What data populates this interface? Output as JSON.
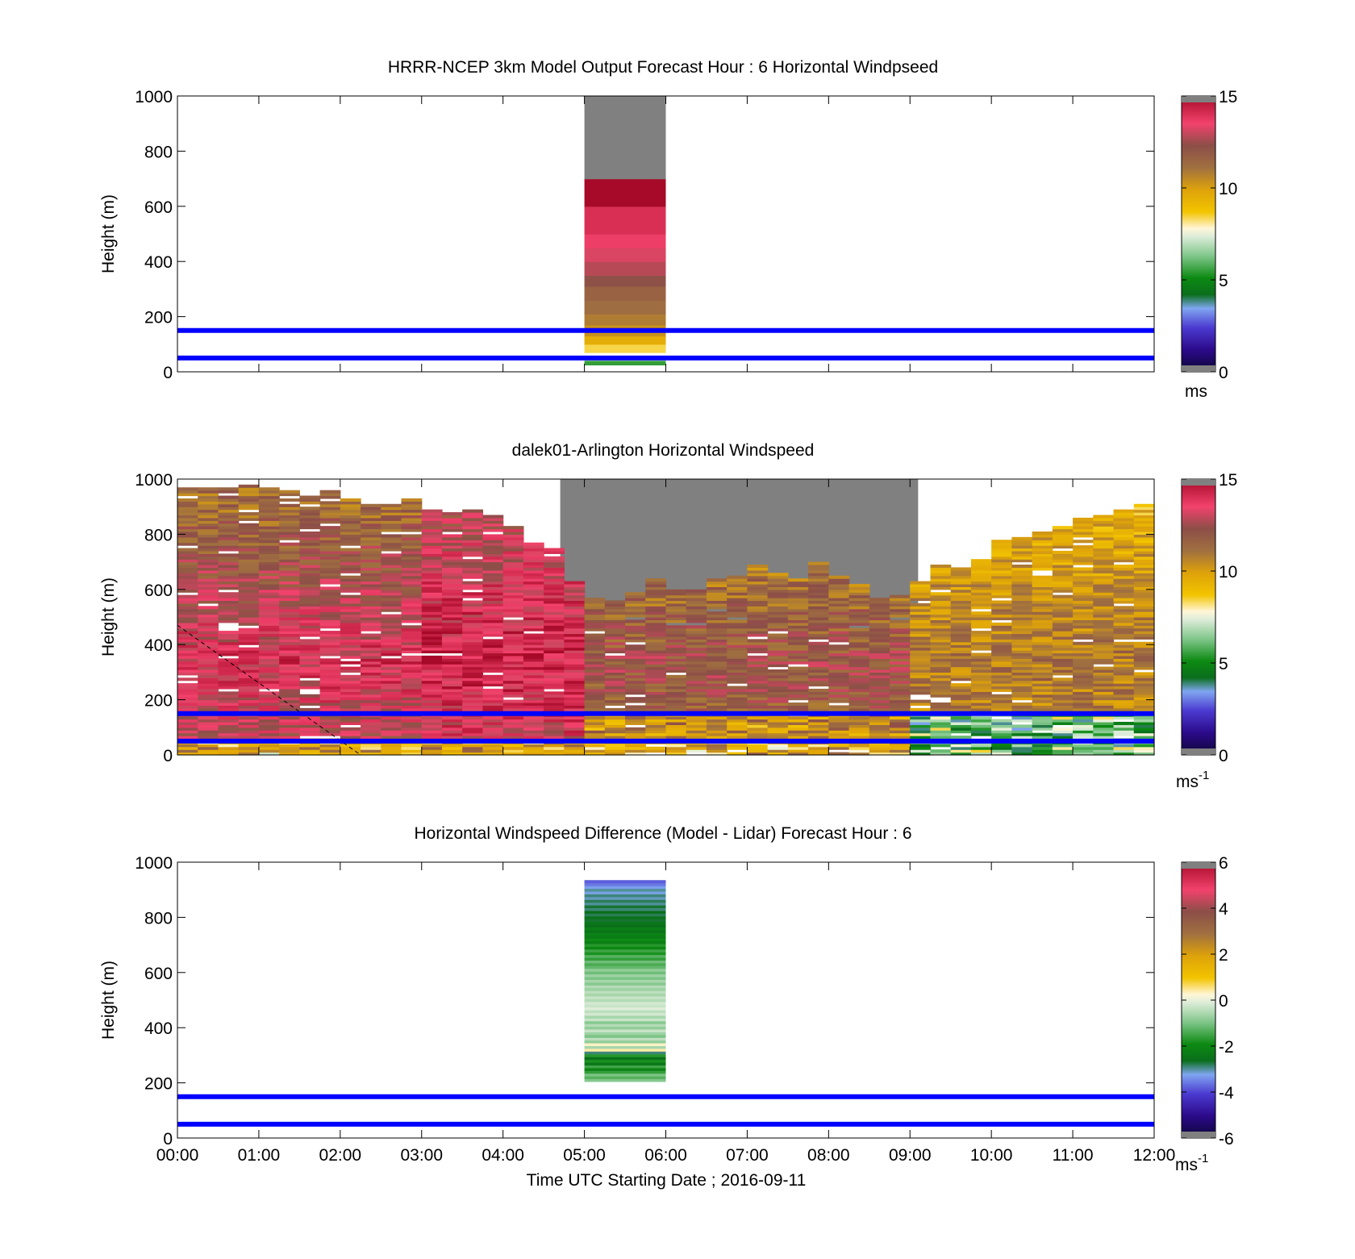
{
  "figure": {
    "xlabel": "Time UTC  Starting Date ; 2016-09-11",
    "x_ticks": [
      "00:00",
      "01:00",
      "02:00",
      "03:00",
      "04:00",
      "05:00",
      "06:00",
      "07:00",
      "08:00",
      "09:00",
      "10:00",
      "11:00",
      "12:00"
    ],
    "reference_lines": {
      "heights_m": [
        50,
        150
      ],
      "color": "#0000ff"
    }
  },
  "chart_data": [
    {
      "type": "heatmap",
      "title": "HRRR-NCEP 3km Model Output   Forecast Hour : 6 Horizontal Windpseed",
      "ylabel": "Height (m)",
      "ylim": [
        0,
        1000
      ],
      "xlim_hours": [
        0,
        12
      ],
      "y_ticks": [
        "0",
        "200",
        "400",
        "600",
        "800",
        "1000"
      ],
      "colorbar": {
        "min": 0,
        "max": 15,
        "ticks": [
          "0",
          "5",
          "10",
          "15"
        ],
        "unit": "ms"
      },
      "columns": [
        {
          "x_start_hour": 5,
          "x_end_hour": 6,
          "cells": [
            {
              "y0": 0,
              "y1": 25,
              "value": null
            },
            {
              "y0": 25,
              "y1": 40,
              "value": 5.5
            },
            {
              "y0": 40,
              "y1": 70,
              "value": null
            },
            {
              "y0": 70,
              "y1": 100,
              "value": 8.4
            },
            {
              "y0": 100,
              "y1": 130,
              "value": 9.5
            },
            {
              "y0": 130,
              "y1": 170,
              "value": 10.3
            },
            {
              "y0": 170,
              "y1": 210,
              "value": 10.8
            },
            {
              "y0": 210,
              "y1": 260,
              "value": 11.2
            },
            {
              "y0": 260,
              "y1": 310,
              "value": 11.6
            },
            {
              "y0": 310,
              "y1": 350,
              "value": 12.2
            },
            {
              "y0": 350,
              "y1": 400,
              "value": 12.8
            },
            {
              "y0": 400,
              "y1": 450,
              "value": 13.2
            },
            {
              "y0": 450,
              "y1": 500,
              "value": 13.6
            },
            {
              "y0": 500,
              "y1": 600,
              "value": 14.0
            },
            {
              "y0": 600,
              "y1": 700,
              "value": 15.0
            },
            {
              "y0": 700,
              "y1": 1000,
              "value": "missing"
            }
          ]
        }
      ]
    },
    {
      "type": "heatmap",
      "title": "dalek01-Arlington  Horizontal Windspeed",
      "ylabel": "Height (m)",
      "ylim": [
        0,
        1000
      ],
      "xlim_hours": [
        0,
        12
      ],
      "y_ticks": [
        "0",
        "200",
        "400",
        "600",
        "800",
        "1000"
      ],
      "colorbar": {
        "min": 0,
        "max": 15,
        "ticks": [
          "0",
          "5",
          "10",
          "15"
        ],
        "unit": "ms",
        "unit_exp": "-1"
      },
      "time_step_min": 15,
      "top_of_data_m": [
        960,
        960,
        960,
        970,
        960,
        950,
        930,
        950,
        920,
        900,
        900,
        920,
        880,
        870,
        880,
        860,
        820,
        760,
        740,
        620,
        560,
        550,
        580,
        630,
        590,
        590,
        630,
        650,
        680,
        650,
        630,
        690,
        650,
        610,
        560,
        570,
        620,
        680,
        670,
        700,
        770,
        780,
        800,
        820,
        850,
        860,
        880,
        900
      ],
      "profile_12": [
        12.5,
        13.8,
        12.2,
        11.0
      ],
      "profile_24": [
        13.2,
        14.2,
        13.4,
        12.0
      ],
      "profile_32": [
        11.5,
        12.2,
        11.0,
        10.6
      ],
      "profile_40": [
        10.4,
        11.0,
        10.0,
        9.0
      ],
      "surface_value_m_s": 9.5,
      "band_value_m_s": 10.5,
      "late_low_value_m_s": 6.0,
      "dashed_line": {
        "from": [
          0,
          470
        ],
        "to": [
          2.25,
          0
        ]
      }
    },
    {
      "type": "heatmap",
      "title": "Horizontal Windspeed Difference (Model - Lidar) Forecast Hour : 6",
      "ylabel": "Height (m)",
      "ylim": [
        0,
        1000
      ],
      "xlim_hours": [
        0,
        12
      ],
      "y_ticks": [
        "0",
        "200",
        "400",
        "600",
        "800",
        "1000"
      ],
      "colorbar": {
        "min": -6,
        "max": 6,
        "ticks": [
          "-6",
          "-4",
          "-2",
          "0",
          "2",
          "4",
          "6"
        ],
        "unit": "ms",
        "unit_exp": "-1"
      },
      "columns": [
        {
          "x_start_hour": 5,
          "x_end_hour": 6,
          "cells": [
            {
              "y0": 205,
              "y1": 215,
              "value": -0.9
            },
            {
              "y0": 215,
              "y1": 225,
              "value": -1.3
            },
            {
              "y0": 225,
              "y1": 235,
              "value": -1.0
            },
            {
              "y0": 235,
              "y1": 245,
              "value": -1.6
            },
            {
              "y0": 245,
              "y1": 255,
              "value": -2.1
            },
            {
              "y0": 255,
              "y1": 265,
              "value": -1.5
            },
            {
              "y0": 265,
              "y1": 275,
              "value": -2.4
            },
            {
              "y0": 275,
              "y1": 285,
              "value": -1.8
            },
            {
              "y0": 285,
              "y1": 295,
              "value": -2.6
            },
            {
              "y0": 295,
              "y1": 305,
              "value": -1.7
            },
            {
              "y0": 305,
              "y1": 315,
              "value": -2.9
            },
            {
              "y0": 315,
              "y1": 325,
              "value": 0.4
            },
            {
              "y0": 325,
              "y1": 335,
              "value": -0.6
            },
            {
              "y0": 335,
              "y1": 345,
              "value": 0.3
            },
            {
              "y0": 345,
              "y1": 355,
              "value": -0.8
            },
            {
              "y0": 355,
              "y1": 365,
              "value": -0.4
            },
            {
              "y0": 365,
              "y1": 375,
              "value": -1.0
            },
            {
              "y0": 375,
              "y1": 385,
              "value": -0.7
            },
            {
              "y0": 385,
              "y1": 395,
              "value": -0.3
            },
            {
              "y0": 395,
              "y1": 405,
              "value": -0.8
            },
            {
              "y0": 405,
              "y1": 415,
              "value": -0.5
            },
            {
              "y0": 415,
              "y1": 425,
              "value": -0.9
            },
            {
              "y0": 425,
              "y1": 435,
              "value": -0.3
            },
            {
              "y0": 435,
              "y1": 445,
              "value": -0.6
            },
            {
              "y0": 445,
              "y1": 455,
              "value": -0.2
            },
            {
              "y0": 455,
              "y1": 465,
              "value": -0.4
            },
            {
              "y0": 465,
              "y1": 475,
              "value": -0.1
            },
            {
              "y0": 475,
              "y1": 485,
              "value": -0.3
            },
            {
              "y0": 485,
              "y1": 495,
              "value": -0.2
            },
            {
              "y0": 495,
              "y1": 505,
              "value": -0.5
            },
            {
              "y0": 505,
              "y1": 515,
              "value": -0.3
            },
            {
              "y0": 515,
              "y1": 525,
              "value": -0.6
            },
            {
              "y0": 525,
              "y1": 535,
              "value": -0.4
            },
            {
              "y0": 535,
              "y1": 545,
              "value": -0.7
            },
            {
              "y0": 545,
              "y1": 555,
              "value": -0.5
            },
            {
              "y0": 555,
              "y1": 565,
              "value": -0.9
            },
            {
              "y0": 565,
              "y1": 575,
              "value": -0.6
            },
            {
              "y0": 575,
              "y1": 585,
              "value": -1.0
            },
            {
              "y0": 585,
              "y1": 595,
              "value": -0.7
            },
            {
              "y0": 595,
              "y1": 605,
              "value": -1.1
            },
            {
              "y0": 605,
              "y1": 615,
              "value": -0.8
            },
            {
              "y0": 615,
              "y1": 625,
              "value": -1.2
            },
            {
              "y0": 625,
              "y1": 635,
              "value": -1.4
            },
            {
              "y0": 635,
              "y1": 645,
              "value": -1.1
            },
            {
              "y0": 645,
              "y1": 655,
              "value": -1.6
            },
            {
              "y0": 655,
              "y1": 665,
              "value": -1.3
            },
            {
              "y0": 665,
              "y1": 675,
              "value": -1.8
            },
            {
              "y0": 675,
              "y1": 685,
              "value": -1.5
            },
            {
              "y0": 685,
              "y1": 695,
              "value": -2.0
            },
            {
              "y0": 695,
              "y1": 705,
              "value": -1.7
            },
            {
              "y0": 705,
              "y1": 715,
              "value": -2.2
            },
            {
              "y0": 715,
              "y1": 725,
              "value": -1.9
            },
            {
              "y0": 725,
              "y1": 735,
              "value": -2.3
            },
            {
              "y0": 735,
              "y1": 745,
              "value": -2.1
            },
            {
              "y0": 745,
              "y1": 755,
              "value": -2.5
            },
            {
              "y0": 755,
              "y1": 765,
              "value": -2.2
            },
            {
              "y0": 765,
              "y1": 775,
              "value": -2.6
            },
            {
              "y0": 775,
              "y1": 785,
              "value": -2.4
            },
            {
              "y0": 785,
              "y1": 795,
              "value": -2.7
            },
            {
              "y0": 795,
              "y1": 805,
              "value": -2.5
            },
            {
              "y0": 805,
              "y1": 815,
              "value": -2.8
            },
            {
              "y0": 815,
              "y1": 825,
              "value": -2.6
            },
            {
              "y0": 825,
              "y1": 835,
              "value": -2.9
            },
            {
              "y0": 835,
              "y1": 845,
              "value": -2.7
            },
            {
              "y0": 845,
              "y1": 855,
              "value": -3.0
            },
            {
              "y0": 855,
              "y1": 865,
              "value": -2.8
            },
            {
              "y0": 865,
              "y1": 875,
              "value": -3.1
            },
            {
              "y0": 875,
              "y1": 885,
              "value": -2.9
            },
            {
              "y0": 885,
              "y1": 895,
              "value": -3.2
            },
            {
              "y0": 895,
              "y1": 905,
              "value": -3.0
            },
            {
              "y0": 905,
              "y1": 915,
              "value": -3.3
            },
            {
              "y0": 915,
              "y1": 925,
              "value": -3.6
            },
            {
              "y0": 925,
              "y1": 935,
              "value": -3.8
            }
          ]
        }
      ]
    }
  ]
}
